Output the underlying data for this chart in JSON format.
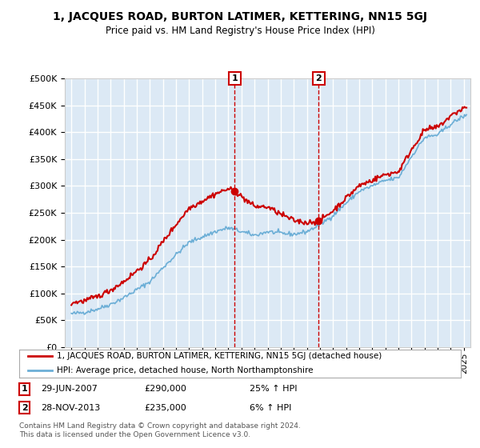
{
  "title": "1, JACQUES ROAD, BURTON LATIMER, KETTERING, NN15 5GJ",
  "subtitle": "Price paid vs. HM Land Registry's House Price Index (HPI)",
  "background_color": "#ffffff",
  "plot_bg_color": "#dce9f5",
  "grid_color": "#ffffff",
  "sale1_date_x": 2007.49,
  "sale1_price": 290000,
  "sale2_date_x": 2013.91,
  "sale2_price": 235000,
  "legend_line1": "1, JACQUES ROAD, BURTON LATIMER, KETTERING, NN15 5GJ (detached house)",
  "legend_line2": "HPI: Average price, detached house, North Northamptonshire",
  "label1_date": "29-JUN-2007",
  "label1_price": "£290,000",
  "label1_hpi": "25% ↑ HPI",
  "label2_date": "28-NOV-2013",
  "label2_price": "£235,000",
  "label2_hpi": "6% ↑ HPI",
  "footer": "Contains HM Land Registry data © Crown copyright and database right 2024.\nThis data is licensed under the Open Government Licence v3.0.",
  "hpi_color": "#6baed6",
  "price_color": "#cc0000",
  "dashed_color": "#cc0000",
  "ylim": [
    0,
    500000
  ],
  "yticks": [
    0,
    50000,
    100000,
    150000,
    200000,
    250000,
    300000,
    350000,
    400000,
    450000,
    500000
  ],
  "xlim_start": 1994.5,
  "xlim_end": 2025.5
}
